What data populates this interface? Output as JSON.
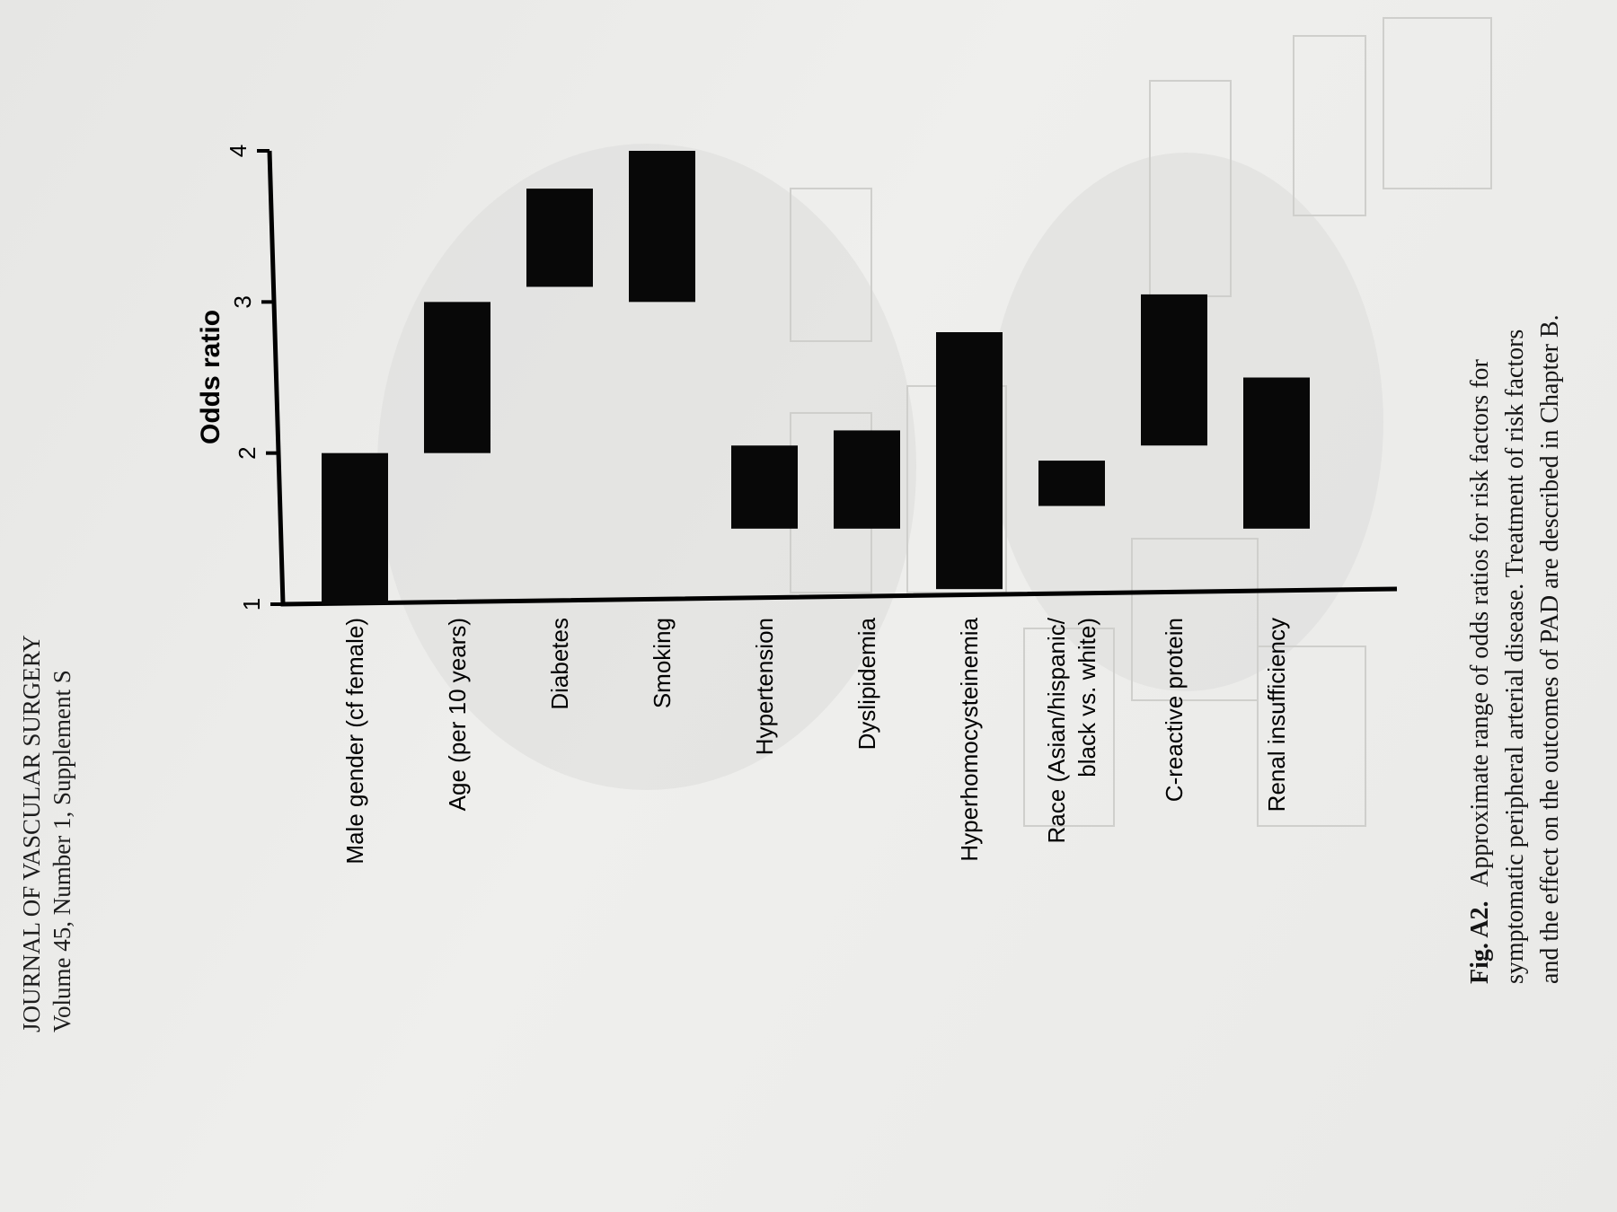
{
  "header": {
    "journal": "JOURNAL OF VASCULAR SURGERY",
    "volume": "Volume 45, Number 1, Supplement S"
  },
  "caption": {
    "label": "Fig. A2.",
    "lines": [
      "Approximate range of odds ratios for risk factors for",
      "symptomatic peripheral arterial disease. Treatment of risk factors",
      "and the effect on the outcomes of PAD are described in Chapter B."
    ]
  },
  "chart_data": {
    "type": "bar",
    "title": "",
    "xlabel": "",
    "ylabel": "Odds ratio",
    "ylim": [
      1,
      4
    ],
    "ticks": [
      1,
      2,
      3,
      4
    ],
    "orientation": "page rotated 90° counter-clockwise; odds-ratio axis runs upward, categories left to right",
    "categories": [
      [
        "Male gender (cf female)"
      ],
      [
        "Age (per 10 years)"
      ],
      [
        "Diabetes"
      ],
      [
        "Smoking"
      ],
      [
        "Hypertension"
      ],
      [
        "Dyslipidemia"
      ],
      [
        "Hyperhomocysteinemia"
      ],
      [
        "Race (Asian/hispanic/",
        "black vs. white)"
      ],
      [
        "C-reactive protein"
      ],
      [
        "Renal insufficiency"
      ]
    ],
    "series": [
      {
        "low": [
          1.0,
          2.0,
          3.1,
          3.0,
          1.5,
          1.5,
          1.1,
          1.65,
          2.05,
          1.5
        ],
        "high": [
          2.0,
          3.0,
          3.75,
          4.0,
          2.05,
          2.15,
          2.8,
          1.95,
          3.05,
          2.5
        ]
      }
    ],
    "grid": false,
    "legend": "none"
  }
}
